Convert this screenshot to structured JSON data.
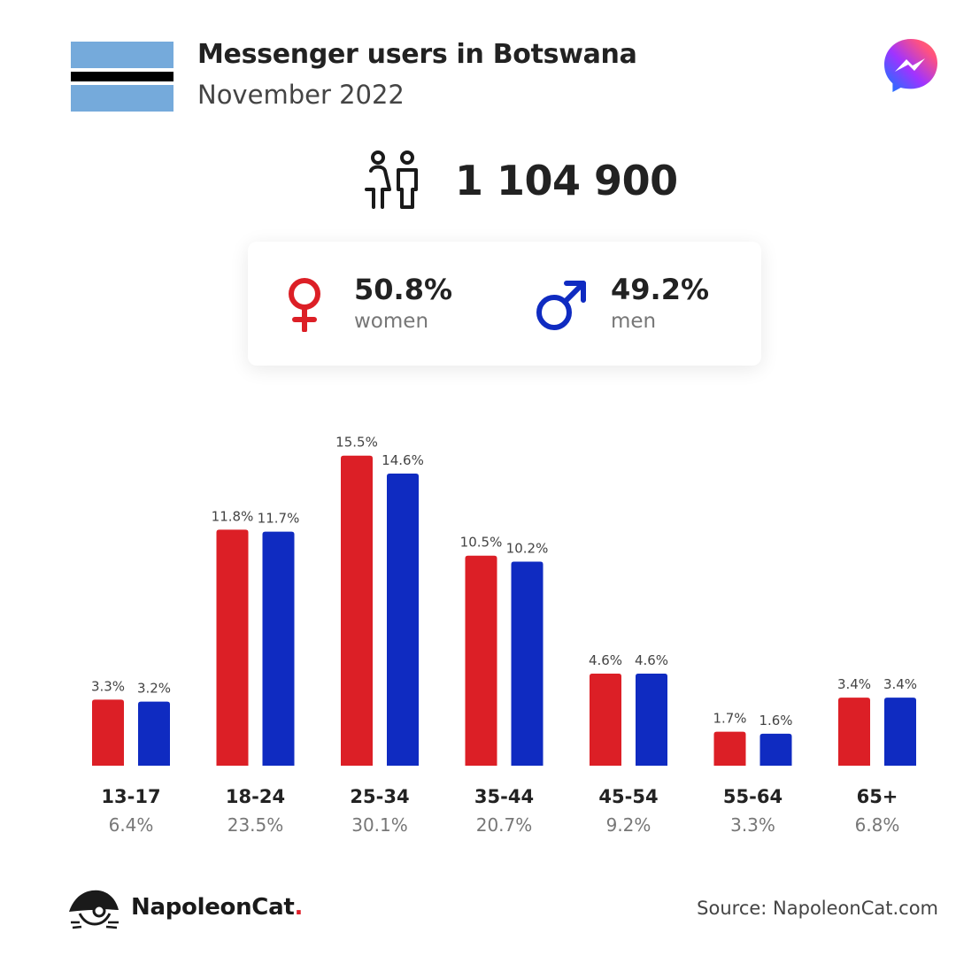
{
  "header": {
    "title": "Messenger users in Botswana",
    "subtitle": "November 2022"
  },
  "icons": {
    "flag": "botswana-flag-icon",
    "brand": "messenger-logo-icon",
    "people": "people-icon",
    "female": "female-symbol-icon",
    "male": "male-symbol-icon"
  },
  "total_users": "1 104 900",
  "gender": {
    "women": {
      "pct": "50.8%",
      "label": "women"
    },
    "men": {
      "pct": "49.2%",
      "label": "men"
    }
  },
  "colors": {
    "women": "#dc1f26",
    "men": "#0f2bc1",
    "flag_blue": "#75aadb",
    "flag_black": "#000000"
  },
  "chart_data": {
    "type": "bar",
    "categories": [
      "13-17",
      "18-24",
      "25-34",
      "35-44",
      "45-54",
      "55-64",
      "65+"
    ],
    "category_totals": [
      "6.4%",
      "23.5%",
      "30.1%",
      "20.7%",
      "9.2%",
      "3.3%",
      "6.8%"
    ],
    "series": [
      {
        "values": [
          3.3,
          11.8,
          15.5,
          10.5,
          4.6,
          1.7,
          3.4
        ],
        "labels": [
          "3.3%",
          "11.8%",
          "15.5%",
          "10.5%",
          "4.6%",
          "1.7%",
          "3.4%"
        ],
        "color": "#dc1f26"
      },
      {
        "values": [
          3.2,
          11.7,
          14.6,
          10.2,
          4.6,
          1.6,
          3.4
        ],
        "labels": [
          "3.2%",
          "11.7%",
          "14.6%",
          "10.2%",
          "4.6%",
          "1.6%",
          "3.4%"
        ],
        "color": "#0f2bc1"
      }
    ],
    "ylim": [
      0,
      15.5
    ],
    "grid": false,
    "legend": "none"
  },
  "footer": {
    "brand_name": "NapoleonCat",
    "brand_dot": ".",
    "source": "Source: NapoleonCat.com"
  }
}
